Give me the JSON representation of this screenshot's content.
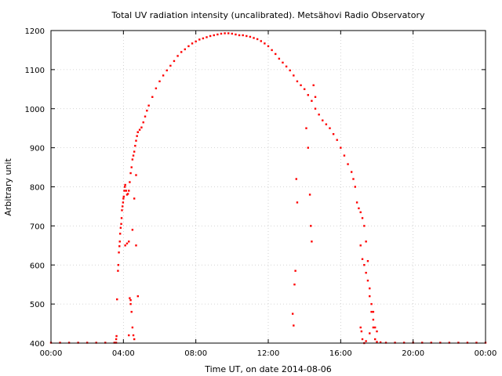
{
  "chart_data": {
    "type": "scatter",
    "title": "Total UV radiation intensity (uncalibrated). Metsähovi Radio Observatory",
    "xlabel": "Time UT, on date 2014-08-06",
    "ylabel": "Arbitrary unit",
    "xlim": [
      0,
      24
    ],
    "ylim": [
      400,
      1200
    ],
    "x_unit": "hours UT",
    "x_ticks": [
      {
        "value": 0,
        "label": "00:00"
      },
      {
        "value": 4,
        "label": "04:00"
      },
      {
        "value": 8,
        "label": "08:00"
      },
      {
        "value": 12,
        "label": "12:00"
      },
      {
        "value": 16,
        "label": "16:00"
      },
      {
        "value": 20,
        "label": "20:00"
      },
      {
        "value": 24,
        "label": "00:00"
      }
    ],
    "y_ticks": [
      400,
      500,
      600,
      700,
      800,
      900,
      1000,
      1100,
      1200
    ],
    "grid": true,
    "marker_color": "#ff0000",
    "series": [
      {
        "color": "#ff0000",
        "points": [
          [
            0.0,
            401
          ],
          [
            0.5,
            401
          ],
          [
            1.0,
            401
          ],
          [
            1.5,
            401
          ],
          [
            2.0,
            401
          ],
          [
            2.5,
            401
          ],
          [
            3.0,
            401
          ],
          [
            3.5,
            401
          ],
          [
            3.6,
            401
          ],
          [
            3.6,
            410
          ],
          [
            3.62,
            418
          ],
          [
            3.65,
            512
          ],
          [
            3.7,
            585
          ],
          [
            3.72,
            600
          ],
          [
            3.75,
            632
          ],
          [
            3.78,
            648
          ],
          [
            3.8,
            660
          ],
          [
            3.82,
            680
          ],
          [
            3.85,
            695
          ],
          [
            3.88,
            705
          ],
          [
            3.9,
            720
          ],
          [
            3.92,
            740
          ],
          [
            3.95,
            750
          ],
          [
            3.98,
            760
          ],
          [
            4.0,
            770
          ],
          [
            4.02,
            775
          ],
          [
            4.05,
            790
          ],
          [
            4.08,
            800
          ],
          [
            4.1,
            805
          ],
          [
            4.15,
            790
          ],
          [
            4.2,
            780
          ],
          [
            4.25,
            782
          ],
          [
            4.3,
            790
          ],
          [
            4.35,
            812
          ],
          [
            4.4,
            835
          ],
          [
            4.45,
            850
          ],
          [
            4.5,
            870
          ],
          [
            4.55,
            880
          ],
          [
            4.6,
            890
          ],
          [
            4.65,
            905
          ],
          [
            4.7,
            918
          ],
          [
            4.75,
            930
          ],
          [
            4.8,
            940
          ],
          [
            4.9,
            946
          ],
          [
            5.0,
            952
          ],
          [
            5.1,
            965
          ],
          [
            5.2,
            980
          ],
          [
            5.3,
            995
          ],
          [
            5.4,
            1008
          ],
          [
            5.6,
            1030
          ],
          [
            5.8,
            1052
          ],
          [
            6.0,
            1070
          ],
          [
            6.2,
            1085
          ],
          [
            6.4,
            1098
          ],
          [
            6.6,
            1110
          ],
          [
            6.8,
            1122
          ],
          [
            7.0,
            1135
          ],
          [
            7.2,
            1145
          ],
          [
            7.4,
            1152
          ],
          [
            7.6,
            1160
          ],
          [
            7.8,
            1167
          ],
          [
            8.0,
            1172
          ],
          [
            8.2,
            1177
          ],
          [
            8.4,
            1180
          ],
          [
            8.6,
            1183
          ],
          [
            8.8,
            1186
          ],
          [
            9.0,
            1188
          ],
          [
            9.2,
            1190
          ],
          [
            9.4,
            1192
          ],
          [
            9.6,
            1193
          ],
          [
            9.8,
            1193
          ],
          [
            10.0,
            1192
          ],
          [
            10.2,
            1190
          ],
          [
            10.4,
            1188
          ],
          [
            10.6,
            1188
          ],
          [
            10.8,
            1186
          ],
          [
            11.0,
            1184
          ],
          [
            11.2,
            1181
          ],
          [
            11.4,
            1178
          ],
          [
            11.6,
            1173
          ],
          [
            11.8,
            1167
          ],
          [
            12.0,
            1160
          ],
          [
            12.2,
            1150
          ],
          [
            12.4,
            1140
          ],
          [
            12.6,
            1128
          ],
          [
            12.8,
            1118
          ],
          [
            13.0,
            1108
          ],
          [
            13.2,
            1098
          ],
          [
            13.4,
            1085
          ],
          [
            13.6,
            1070
          ],
          [
            13.8,
            1060
          ],
          [
            14.0,
            1050
          ],
          [
            14.2,
            1035
          ],
          [
            14.4,
            1020
          ],
          [
            14.6,
            1000
          ],
          [
            14.8,
            985
          ],
          [
            15.0,
            970
          ],
          [
            15.2,
            960
          ],
          [
            15.4,
            950
          ],
          [
            15.6,
            935
          ],
          [
            15.8,
            920
          ],
          [
            16.0,
            900
          ],
          [
            16.2,
            880
          ],
          [
            16.4,
            858
          ],
          [
            16.6,
            838
          ],
          [
            16.7,
            820
          ],
          [
            16.8,
            800
          ],
          [
            16.9,
            760
          ],
          [
            17.0,
            745
          ],
          [
            17.1,
            735
          ],
          [
            17.2,
            720
          ],
          [
            17.3,
            700
          ],
          [
            17.4,
            660
          ],
          [
            17.5,
            610
          ],
          [
            17.6,
            540
          ],
          [
            17.7,
            480
          ],
          [
            17.8,
            440
          ],
          [
            17.9,
            410
          ],
          [
            18.0,
            403
          ],
          [
            18.2,
            402
          ],
          [
            18.5,
            401
          ],
          [
            19.0,
            401
          ],
          [
            19.5,
            401
          ],
          [
            20.0,
            401
          ],
          [
            20.5,
            401
          ],
          [
            21.0,
            401
          ],
          [
            21.5,
            401
          ],
          [
            22.0,
            401
          ],
          [
            22.5,
            401
          ],
          [
            23.0,
            401
          ],
          [
            23.5,
            401
          ],
          [
            24.0,
            401
          ],
          [
            4.1,
            650
          ],
          [
            4.2,
            655
          ],
          [
            4.3,
            660
          ],
          [
            4.4,
            500
          ],
          [
            4.45,
            480
          ],
          [
            4.5,
            440
          ],
          [
            4.55,
            420
          ],
          [
            4.6,
            410
          ],
          [
            4.7,
            650
          ],
          [
            4.8,
            520
          ],
          [
            4.3,
            420
          ],
          [
            4.35,
            515
          ],
          [
            4.4,
            510
          ],
          [
            4.5,
            690
          ],
          [
            4.6,
            770
          ],
          [
            4.7,
            830
          ],
          [
            4.8,
            940
          ],
          [
            13.35,
            475
          ],
          [
            13.4,
            445
          ],
          [
            13.45,
            550
          ],
          [
            13.5,
            585
          ],
          [
            13.55,
            820
          ],
          [
            13.6,
            760
          ],
          [
            14.1,
            950
          ],
          [
            14.2,
            900
          ],
          [
            14.3,
            780
          ],
          [
            14.35,
            700
          ],
          [
            14.4,
            660
          ],
          [
            14.5,
            1060
          ],
          [
            14.6,
            1030
          ],
          [
            17.1,
            650
          ],
          [
            17.2,
            615
          ],
          [
            17.3,
            600
          ],
          [
            17.4,
            580
          ],
          [
            17.5,
            560
          ],
          [
            17.6,
            520
          ],
          [
            17.7,
            500
          ],
          [
            17.8,
            460
          ],
          [
            17.9,
            440
          ],
          [
            17.1,
            440
          ],
          [
            17.15,
            430
          ],
          [
            17.2,
            410
          ],
          [
            17.3,
            400
          ],
          [
            17.4,
            405
          ],
          [
            17.6,
            425
          ],
          [
            17.8,
            480
          ],
          [
            18.0,
            430
          ]
        ]
      }
    ]
  }
}
